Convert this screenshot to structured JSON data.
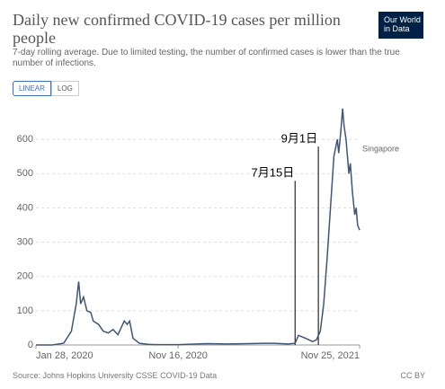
{
  "chart_data": {
    "type": "line",
    "title": "Daily new confirmed COVID-19 cases per million people",
    "subtitle": "7-day rolling average. Due to limited testing, the number of confirmed cases is lower than the true number of infections.",
    "logo": [
      "Our World",
      "in Data"
    ],
    "controls": [
      "LINEAR",
      "LOG"
    ],
    "source": "Source: Johns Hopkins University CSSE COVID-19 Data",
    "license": "CC BY",
    "x": [
      "2020-01-28",
      "2020-03-01",
      "2020-03-25",
      "2020-04-10",
      "2020-04-20",
      "2020-04-25",
      "2020-04-29",
      "2020-05-05",
      "2020-05-12",
      "2020-05-20",
      "2020-05-25",
      "2020-06-05",
      "2020-06-15",
      "2020-06-25",
      "2020-07-05",
      "2020-07-15",
      "2020-07-28",
      "2020-08-03",
      "2020-08-08",
      "2020-08-15",
      "2020-08-28",
      "2020-09-15",
      "2020-10-01",
      "2020-11-16",
      "2021-01-15",
      "2021-03-01",
      "2021-05-15",
      "2021-06-01",
      "2021-07-01",
      "2021-07-15",
      "2021-07-22",
      "2021-08-05",
      "2021-08-20",
      "2021-08-28",
      "2021-09-05",
      "2021-09-12",
      "2021-09-19",
      "2021-09-26",
      "2021-10-03",
      "2021-10-10",
      "2021-10-13",
      "2021-10-17",
      "2021-10-21",
      "2021-10-24",
      "2021-10-28",
      "2021-11-03",
      "2021-11-06",
      "2021-11-10",
      "2021-11-15",
      "2021-11-18",
      "2021-11-21",
      "2021-11-25"
    ],
    "series": [
      {
        "name": "Singapore",
        "color": "#3f5675",
        "values": [
          0,
          0,
          5,
          40,
          120,
          185,
          120,
          140,
          100,
          95,
          70,
          60,
          40,
          35,
          45,
          30,
          70,
          60,
          70,
          20,
          5,
          2,
          1,
          1,
          4,
          3,
          5,
          5,
          3,
          5,
          28,
          20,
          10,
          15,
          40,
          120,
          250,
          400,
          550,
          600,
          560,
          620,
          690,
          640,
          600,
          500,
          530,
          450,
          380,
          400,
          350,
          335
        ]
      }
    ],
    "xlim": [
      "2020-01-28",
      "2021-11-25"
    ],
    "xticks": [
      {
        "value": "2020-01-28",
        "label": "Jan 28, 2020"
      },
      {
        "value": "2020-11-16",
        "label": "Nov 16, 2020"
      },
      {
        "value": "2021-11-25",
        "label": "Nov 25, 2021"
      }
    ],
    "ylim": [
      0,
      700
    ],
    "yticks": [
      0,
      100,
      200,
      300,
      400,
      500,
      600
    ],
    "grid": true,
    "annotations": [
      {
        "x": "2021-07-15",
        "label": "7月15日",
        "y": 500
      },
      {
        "x": "2021-09-01",
        "label": "9月1日",
        "y": 600
      }
    ]
  }
}
